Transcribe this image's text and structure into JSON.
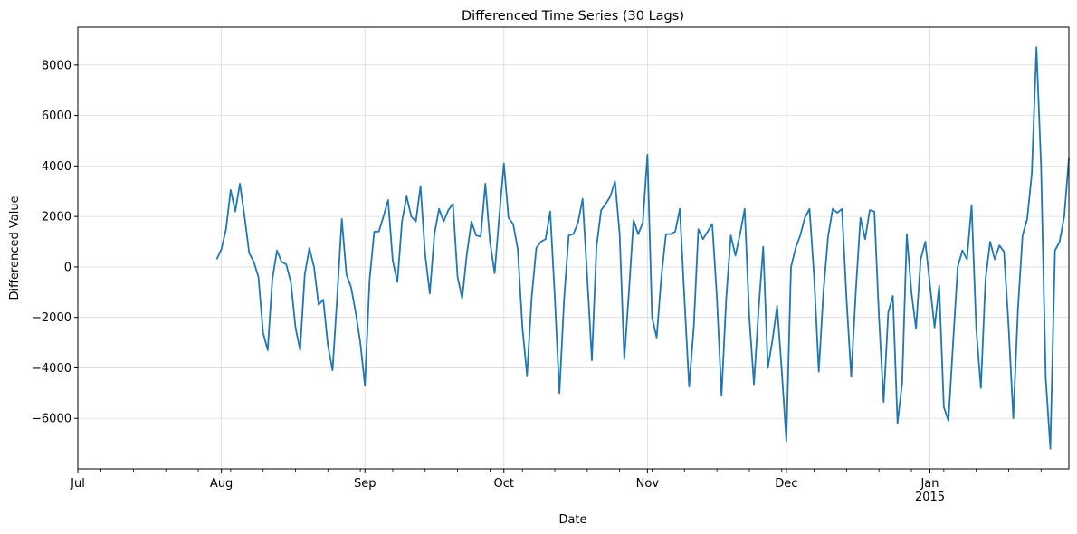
{
  "chart_data": {
    "type": "line",
    "title": "Differenced Time Series (30 Lags)",
    "xlabel": "Date",
    "ylabel": "Differenced Value",
    "grid": true,
    "legend": "none",
    "color": "#1f77b4",
    "x_start": "2014-07-01",
    "x_end": "2015-01-31",
    "ylim": [
      -8000,
      9500
    ],
    "y_ticks": [
      -6000,
      -4000,
      -2000,
      0,
      2000,
      4000,
      6000,
      8000
    ],
    "x_ticks": [
      {
        "date": "2014-07-01",
        "label": "Jul"
      },
      {
        "date": "2014-08-01",
        "label": "Aug"
      },
      {
        "date": "2014-09-01",
        "label": "Sep"
      },
      {
        "date": "2014-10-01",
        "label": "Oct"
      },
      {
        "date": "2014-11-01",
        "label": "Nov"
      },
      {
        "date": "2014-12-01",
        "label": "Dec"
      },
      {
        "date": "2015-01-01",
        "label": "Jan",
        "sublabel": "2015"
      }
    ],
    "series": [
      {
        "x_start": "2014-07-31",
        "step_days": 1,
        "values": [
          300,
          700,
          1500,
          3050,
          2200,
          3300,
          2000,
          550,
          200,
          -400,
          -2600,
          -3300,
          -500,
          650,
          200,
          100,
          -600,
          -2400,
          -3300,
          -300,
          750,
          0,
          -1500,
          -1300,
          -3100,
          -4100,
          -1200,
          1900,
          -300,
          -800,
          -1800,
          -3000,
          -4700,
          -500,
          1400,
          1400,
          2000,
          2650,
          250,
          -600,
          1800,
          2800,
          2000,
          1800,
          3200,
          500,
          -1050,
          1300,
          2300,
          1800,
          2250,
          2500,
          -400,
          -1250,
          500,
          1800,
          1250,
          1200,
          3300,
          1000,
          -250,
          2000,
          4100,
          1950,
          1700,
          700,
          -2400,
          -4300,
          -1200,
          750,
          1000,
          1100,
          2200,
          -1200,
          -5000,
          -1300,
          1250,
          1300,
          1750,
          2700,
          -400,
          -3700,
          800,
          2250,
          2500,
          2800,
          3400,
          1300,
          -3650,
          -1000,
          1850,
          1300,
          1750,
          4450,
          -2000,
          -2800,
          -400,
          1300,
          1300,
          1400,
          2300,
          -1300,
          -4750,
          -2400,
          1500,
          1100,
          1400,
          1700,
          -1200,
          -5100,
          -1300,
          1250,
          450,
          1300,
          2300,
          -2000,
          -4650,
          -1700,
          800,
          -4000,
          -2900,
          -1550,
          -4100,
          -6900,
          0,
          750,
          1250,
          1950,
          2300,
          -400,
          -4150,
          -1000,
          1200,
          2300,
          2150,
          2300,
          -1300,
          -4350,
          -950,
          1950,
          1100,
          2250,
          2200,
          -2000,
          -5350,
          -1800,
          -1150,
          -6200,
          -4600,
          1300,
          -1000,
          -2450,
          300,
          1000,
          -700,
          -2400,
          -750,
          -5550,
          -6100,
          -3000,
          0,
          650,
          300,
          2450,
          -2450,
          -4800,
          -500,
          1000,
          300,
          850,
          600,
          -2400,
          -6000,
          -1700,
          1250,
          1900,
          3700,
          8700,
          4000,
          -4400,
          -7200,
          650,
          1000,
          2000,
          4300
        ]
      }
    ]
  }
}
